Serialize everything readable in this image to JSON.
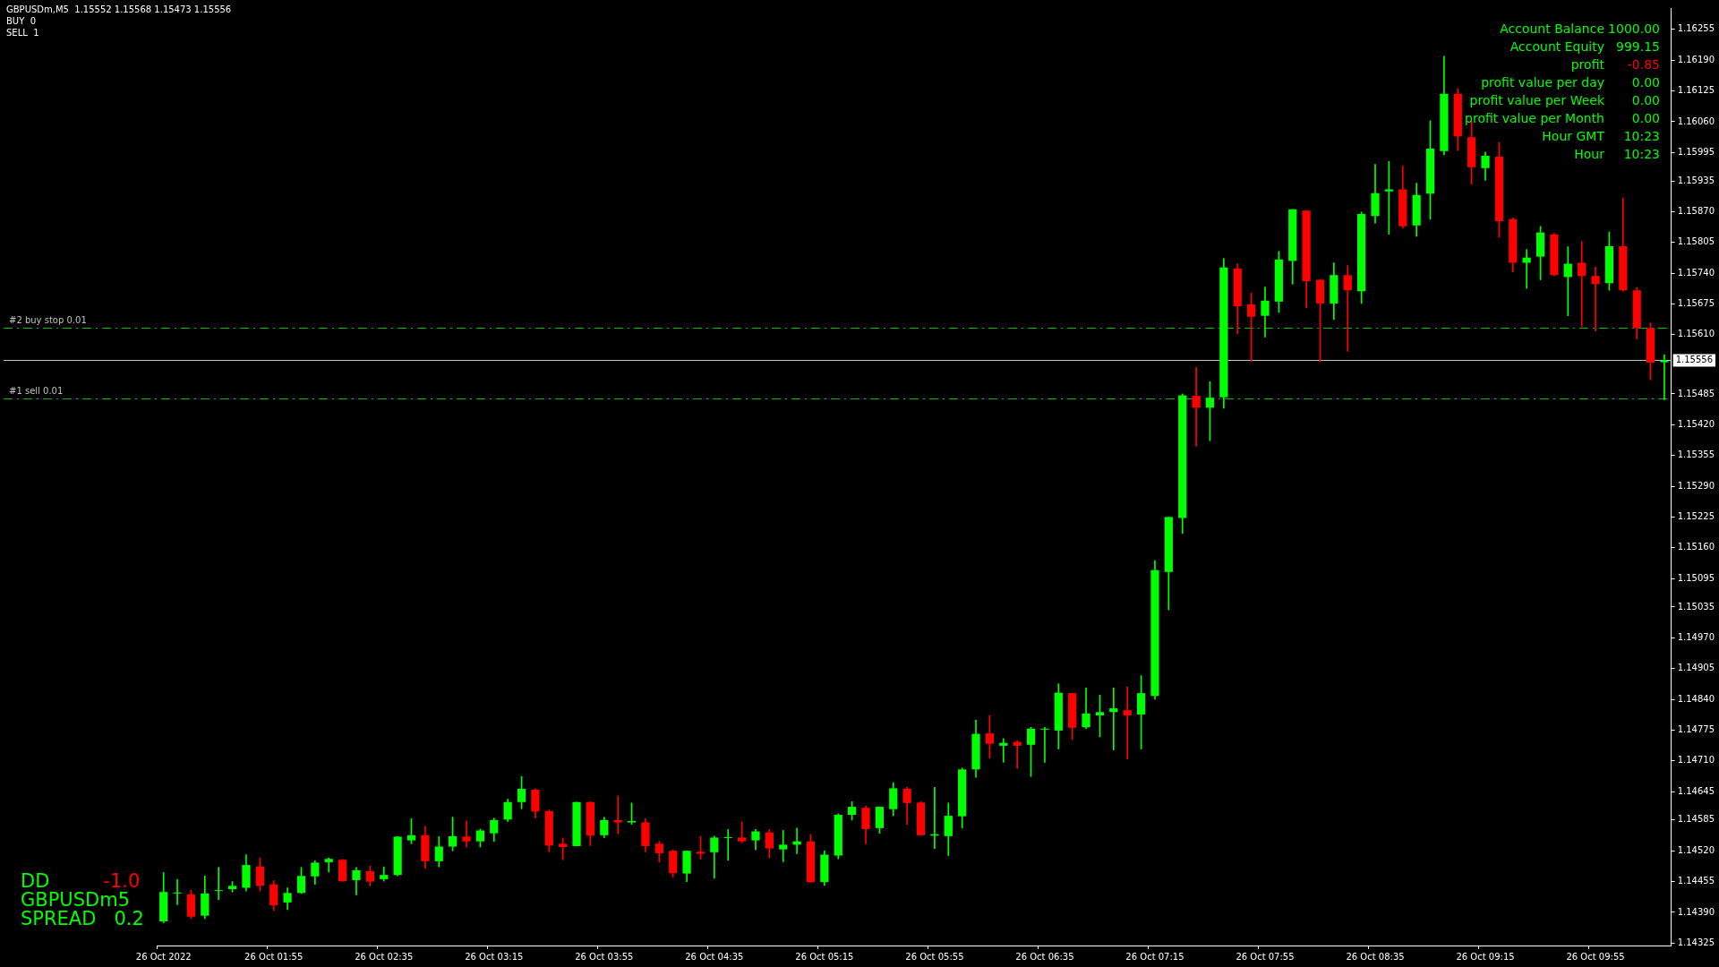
{
  "chart_data": {
    "type": "candlestick",
    "title": "GBPUSDm,M5  1.15552 1.15568 1.15473 1.15556",
    "categories": [
      "26 Oct 2022",
      null,
      null,
      null,
      null,
      null,
      null,
      null,
      "26 Oct 01:55",
      null,
      null,
      null,
      null,
      null,
      null,
      null,
      "26 Oct 02:35",
      null,
      null,
      null,
      null,
      null,
      null,
      null,
      "26 Oct 03:15",
      null,
      null,
      null,
      null,
      null,
      null,
      null,
      "26 Oct 03:55",
      null,
      null,
      null,
      null,
      null,
      null,
      null,
      "26 Oct 04:35",
      null,
      null,
      null,
      null,
      null,
      null,
      null,
      "26 Oct 05:15",
      null,
      null,
      null,
      null,
      null,
      null,
      null,
      "26 Oct 05:55",
      null,
      null,
      null,
      null,
      null,
      null,
      null,
      "26 Oct 06:35",
      null,
      null,
      null,
      null,
      null,
      null,
      null,
      "26 Oct 07:15",
      null,
      null,
      null,
      null,
      null,
      null,
      null,
      "26 Oct 07:55",
      null,
      null,
      null,
      null,
      null,
      null,
      null,
      "26 Oct 08:35",
      null,
      null,
      null,
      null,
      null,
      null,
      null,
      "26 Oct 09:15",
      null,
      null,
      null,
      null,
      null,
      null,
      null,
      "26 Oct 09:55",
      null,
      null,
      null,
      null,
      null
    ],
    "ohlc": [
      [
        1.14371,
        1.14474,
        1.14368,
        1.14433
      ],
      [
        1.1443,
        1.1446,
        1.14406,
        1.14432
      ],
      [
        1.14428,
        1.14437,
        1.14377,
        1.14381
      ],
      [
        1.14383,
        1.14467,
        1.14377,
        1.1443
      ],
      [
        1.14435,
        1.14485,
        1.14417,
        1.14437
      ],
      [
        1.14439,
        1.14455,
        1.14433,
        1.14446
      ],
      [
        1.14442,
        1.14512,
        1.14435,
        1.1449
      ],
      [
        1.14487,
        1.14505,
        1.14435,
        1.14446
      ],
      [
        1.14449,
        1.14457,
        1.14394,
        1.14405
      ],
      [
        1.14411,
        1.14442,
        1.14396,
        1.14431
      ],
      [
        1.14431,
        1.14485,
        1.1443,
        1.14467
      ],
      [
        1.14466,
        1.14499,
        1.14449,
        1.14495
      ],
      [
        1.14496,
        1.14505,
        1.14475,
        1.14503
      ],
      [
        1.14501,
        1.14502,
        1.14455,
        1.14456
      ],
      [
        1.14458,
        1.14485,
        1.14427,
        1.14479
      ],
      [
        1.14477,
        1.14488,
        1.14446,
        1.14455
      ],
      [
        1.1446,
        1.14486,
        1.14456,
        1.14469
      ],
      [
        1.14469,
        1.1455,
        1.14467,
        1.1455
      ],
      [
        1.14542,
        1.14588,
        1.14535,
        1.14553
      ],
      [
        1.14553,
        1.14572,
        1.14483,
        1.14498
      ],
      [
        1.14498,
        1.1455,
        1.14486,
        1.14529
      ],
      [
        1.14529,
        1.14591,
        1.1452,
        1.14551
      ],
      [
        1.1455,
        1.14583,
        1.14528,
        1.1454
      ],
      [
        1.1454,
        1.14566,
        1.14528,
        1.14563
      ],
      [
        1.14557,
        1.14589,
        1.1454,
        1.14585
      ],
      [
        1.14586,
        1.14629,
        1.14582,
        1.14623
      ],
      [
        1.14623,
        1.14677,
        1.14609,
        1.14651
      ],
      [
        1.14649,
        1.14651,
        1.14589,
        1.14603
      ],
      [
        1.14604,
        1.14606,
        1.14518,
        1.14531
      ],
      [
        1.14535,
        1.14547,
        1.14501,
        1.14528
      ],
      [
        1.1453,
        1.14623,
        1.1453,
        1.14623
      ],
      [
        1.14623,
        1.14624,
        1.14531,
        1.14552
      ],
      [
        1.14553,
        1.14591,
        1.14548,
        1.14585
      ],
      [
        1.14585,
        1.14636,
        1.14556,
        1.1458
      ],
      [
        1.1458,
        1.14621,
        1.14576,
        1.14583
      ],
      [
        1.1458,
        1.14588,
        1.14518,
        1.1453
      ],
      [
        1.14535,
        1.1454,
        1.14496,
        1.14515
      ],
      [
        1.1452,
        1.14522,
        1.14464,
        1.14473
      ],
      [
        1.14472,
        1.1452,
        1.14455,
        1.1452
      ],
      [
        1.14518,
        1.14551,
        1.14502,
        1.14514
      ],
      [
        1.14517,
        1.14551,
        1.14462,
        1.14548
      ],
      [
        1.14547,
        1.14565,
        1.145,
        1.14548
      ],
      [
        1.14548,
        1.14581,
        1.14537,
        1.1454
      ],
      [
        1.14542,
        1.14565,
        1.14522,
        1.14561
      ],
      [
        1.14559,
        1.14565,
        1.14505,
        1.14525
      ],
      [
        1.14523,
        1.14563,
        1.14497,
        1.14533
      ],
      [
        1.14533,
        1.14568,
        1.14514,
        1.1454
      ],
      [
        1.1454,
        1.14555,
        1.14453,
        1.14454
      ],
      [
        1.14454,
        1.1452,
        1.14447,
        1.14512
      ],
      [
        1.1451,
        1.14598,
        1.14503,
        1.14596
      ],
      [
        1.14596,
        1.14624,
        1.14585,
        1.14613
      ],
      [
        1.14611,
        1.14615,
        1.14535,
        1.14566
      ],
      [
        1.14568,
        1.14613,
        1.14557,
        1.14613
      ],
      [
        1.14608,
        1.14664,
        1.14594,
        1.14652
      ],
      [
        1.14651,
        1.14654,
        1.14576,
        1.14621
      ],
      [
        1.14622,
        1.14624,
        1.14553,
        1.14553
      ],
      [
        1.14552,
        1.14654,
        1.14525,
        1.14555
      ],
      [
        1.14551,
        1.14621,
        1.1451,
        1.14594
      ],
      [
        1.14593,
        1.14695,
        1.14568,
        1.14692
      ],
      [
        1.14692,
        1.14796,
        1.14675,
        1.14767
      ],
      [
        1.14768,
        1.14806,
        1.14716,
        1.14746
      ],
      [
        1.14742,
        1.14757,
        1.14707,
        1.14748
      ],
      [
        1.1475,
        1.14753,
        1.14694,
        1.14742
      ],
      [
        1.14744,
        1.14781,
        1.14677,
        1.14778
      ],
      [
        1.14776,
        1.14781,
        1.14707,
        1.14778
      ],
      [
        1.14774,
        1.14873,
        1.14735,
        1.14854
      ],
      [
        1.14853,
        1.14853,
        1.14755,
        1.1478
      ],
      [
        1.14781,
        1.14864,
        1.14778,
        1.1481
      ],
      [
        1.14806,
        1.14849,
        1.14761,
        1.14813
      ],
      [
        1.14813,
        1.14864,
        1.14733,
        1.14821
      ],
      [
        1.14817,
        1.14866,
        1.14714,
        1.14806
      ],
      [
        1.14808,
        1.1489,
        1.14735,
        1.14853
      ],
      [
        1.14847,
        1.15133,
        1.1484,
        1.15113
      ],
      [
        1.15109,
        1.15225,
        1.15029,
        1.15225
      ],
      [
        1.15223,
        1.15485,
        1.1519,
        1.15482
      ],
      [
        1.15481,
        1.15541,
        1.15375,
        1.15456
      ],
      [
        1.15456,
        1.15511,
        1.15386,
        1.15477
      ],
      [
        1.15478,
        1.15771,
        1.15455,
        1.15752
      ],
      [
        1.1575,
        1.1576,
        1.15612,
        1.1567
      ],
      [
        1.15674,
        1.15698,
        1.15554,
        1.15648
      ],
      [
        1.1565,
        1.15711,
        1.15605,
        1.15682
      ],
      [
        1.1568,
        1.15786,
        1.15657,
        1.15769
      ],
      [
        1.15766,
        1.15875,
        1.15717,
        1.15875
      ],
      [
        1.15872,
        1.15872,
        1.15667,
        1.15723
      ],
      [
        1.15726,
        1.15726,
        1.15553,
        1.15676
      ],
      [
        1.15676,
        1.15762,
        1.15642,
        1.15736
      ],
      [
        1.15736,
        1.15756,
        1.15575,
        1.15704
      ],
      [
        1.15702,
        1.15869,
        1.15676,
        1.15865
      ],
      [
        1.15861,
        1.1597,
        1.15846,
        1.15909
      ],
      [
        1.15913,
        1.15976,
        1.15822,
        1.15917
      ],
      [
        1.15917,
        1.15966,
        1.15835,
        1.15839
      ],
      [
        1.15841,
        1.1593,
        1.15818,
        1.15905
      ],
      [
        1.15908,
        1.16062,
        1.15854,
        1.16003
      ],
      [
        1.15998,
        1.16198,
        1.1599,
        1.16119
      ],
      [
        1.16119,
        1.1613,
        1.15999,
        1.16029
      ],
      [
        1.16027,
        1.16061,
        1.15928,
        1.15964
      ],
      [
        1.15962,
        1.15996,
        1.15936,
        1.15988
      ],
      [
        1.15986,
        1.16016,
        1.15816,
        1.1585
      ],
      [
        1.15854,
        1.15857,
        1.15743,
        1.15762
      ],
      [
        1.15762,
        1.1579,
        1.15708,
        1.15773
      ],
      [
        1.15775,
        1.15839,
        1.15726,
        1.15826
      ],
      [
        1.15822,
        1.15824,
        1.15734,
        1.15736
      ],
      [
        1.15732,
        1.15796,
        1.1565,
        1.1576
      ],
      [
        1.15762,
        1.15807,
        1.15627,
        1.15734
      ],
      [
        1.15734,
        1.15753,
        1.15618,
        1.15717
      ],
      [
        1.15719,
        1.15827,
        1.15704,
        1.15797
      ],
      [
        1.15797,
        1.15899,
        1.15702,
        1.15704
      ],
      [
        1.15704,
        1.1571,
        1.15601,
        1.15624
      ],
      [
        1.15624,
        1.15635,
        1.15515,
        1.15551
      ],
      [
        1.15552,
        1.15568,
        1.15473,
        1.15556
      ]
    ],
    "colors": [
      "#00ff00",
      "#00ff00",
      "#ff0000",
      "#00ff00",
      "#00ff00",
      "#00ff00",
      "#00ff00",
      "#ff0000",
      "#ff0000",
      "#00ff00",
      "#00ff00",
      "#00ff00",
      "#00ff00",
      "#ff0000",
      "#00ff00",
      "#ff0000",
      "#00ff00",
      "#00ff00",
      "#00ff00",
      "#ff0000",
      "#00ff00",
      "#00ff00",
      "#ff0000",
      "#00ff00",
      "#00ff00",
      "#00ff00",
      "#00ff00",
      "#ff0000",
      "#ff0000",
      "#ff0000",
      "#00ff00",
      "#ff0000",
      "#00ff00",
      "#ff0000",
      "#00ff00",
      "#ff0000",
      "#ff0000",
      "#ff0000",
      "#00ff00",
      "#ff0000",
      "#00ff00",
      "#00ff00",
      "#ff0000",
      "#00ff00",
      "#ff0000",
      "#00ff00",
      "#00ff00",
      "#ff0000",
      "#00ff00",
      "#00ff00",
      "#00ff00",
      "#ff0000",
      "#00ff00",
      "#00ff00",
      "#ff0000",
      "#ff0000",
      "#00ff00",
      "#00ff00",
      "#00ff00",
      "#00ff00",
      "#ff0000",
      "#00ff00",
      "#ff0000",
      "#00ff00",
      "#00ff00",
      "#00ff00",
      "#ff0000",
      "#00ff00",
      "#00ff00",
      "#00ff00",
      "#ff0000",
      "#00ff00",
      "#00ff00",
      "#00ff00",
      "#00ff00",
      "#ff0000",
      "#00ff00",
      "#00ff00",
      "#ff0000",
      "#ff0000",
      "#00ff00",
      "#00ff00",
      "#00ff00",
      "#ff0000",
      "#ff0000",
      "#00ff00",
      "#ff0000",
      "#00ff00",
      "#00ff00",
      "#00ff00",
      "#ff0000",
      "#00ff00",
      "#00ff00",
      "#00ff00",
      "#ff0000",
      "#ff0000",
      "#00ff00",
      "#ff0000",
      "#ff0000",
      "#00ff00",
      "#00ff00",
      "#ff0000",
      "#00ff00",
      "#ff0000",
      "#ff0000",
      "#00ff00",
      "#ff0000",
      "#ff0000",
      "#ff0000",
      "#00ff00"
    ],
    "ylim": [
      1.1432,
      1.163
    ],
    "yticks": [
      1.16255,
      {
        "value": 1.1619,
        "label": "1.16190"
      },
      1.16125,
      {
        "value": 1.1606,
        "label": "1.16060"
      },
      1.15995,
      1.15935,
      {
        "value": 1.1587,
        "label": "1.15870"
      },
      1.15805,
      {
        "value": 1.1574,
        "label": "1.15740"
      },
      1.15675,
      {
        "value": 1.1561,
        "label": "1.15610"
      },
      1.15485,
      {
        "value": 1.1542,
        "label": "1.15420"
      },
      1.15355,
      {
        "value": 1.1529,
        "label": "1.15290"
      },
      1.15225,
      {
        "value": 1.1516,
        "label": "1.15160"
      },
      1.15095,
      1.15035,
      {
        "value": 1.1497,
        "label": "1.14970"
      },
      1.14905,
      {
        "value": 1.1484,
        "label": "1.14840"
      },
      1.14775,
      {
        "value": 1.1471,
        "label": "1.14710"
      },
      1.14645,
      1.14585,
      {
        "value": 1.1452,
        "label": "1.14520"
      },
      1.14455,
      {
        "value": 1.1439,
        "label": "1.14390"
      },
      1.14325
    ],
    "ref_lines": [
      {
        "axis": "y",
        "value": 1.15624,
        "label": "#2 buy stop 0.01",
        "color": "#00c000",
        "line_style": "dashed"
      },
      {
        "axis": "y",
        "value": 1.15475,
        "label": "#1 sell 0.01",
        "color": "#00c000",
        "line_style": "dashed"
      },
      {
        "axis": "y",
        "value": 1.15556,
        "label": "1.15556",
        "color": "#c0c0c0",
        "line_style": "solid"
      }
    ],
    "annotations": [
      "BUY  0",
      "SELL  1",
      "Account Balance",
      "1000.00",
      "Account Equity",
      "999.15",
      "profit",
      "-0.85",
      "profit value per day",
      "0.00",
      "profit value per Week",
      "0.00",
      "profit value per Month",
      "0.00",
      "Hour GMT",
      "10:23",
      "Hour",
      "10:23",
      "DD",
      "-1.0",
      "GBPUSDm5",
      "SPREAD   0.2"
    ],
    "grid": false,
    "legend": false
  }
}
